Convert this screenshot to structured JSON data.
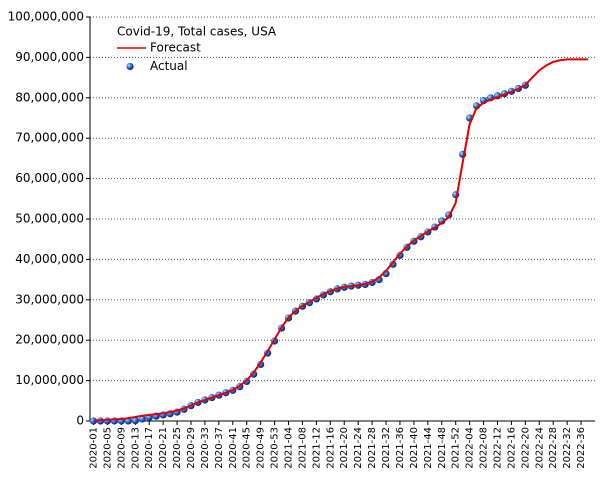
{
  "chart_data": {
    "type": "line-scatter",
    "title": "Covid-19, Total cases, USA",
    "xlim": [
      -1,
      144
    ],
    "xticks": [
      {
        "value": 0,
        "label": "2020-01"
      },
      {
        "value": 4,
        "label": "2020-05"
      },
      {
        "value": 8,
        "label": "2020-09"
      },
      {
        "value": 12,
        "label": "2020-13"
      },
      {
        "value": 16,
        "label": "2020-17"
      },
      {
        "value": 20,
        "label": "2020-21"
      },
      {
        "value": 24,
        "label": "2020-25"
      },
      {
        "value": 28,
        "label": "2020-29"
      },
      {
        "value": 32,
        "label": "2020-33"
      },
      {
        "value": 36,
        "label": "2020-37"
      },
      {
        "value": 40,
        "label": "2020-41"
      },
      {
        "value": 44,
        "label": "2020-45"
      },
      {
        "value": 48,
        "label": "2020-49"
      },
      {
        "value": 52,
        "label": "2020-53"
      },
      {
        "value": 56,
        "label": "2021-04"
      },
      {
        "value": 60,
        "label": "2021-08"
      },
      {
        "value": 64,
        "label": "2021-12"
      },
      {
        "value": 68,
        "label": "2021-16"
      },
      {
        "value": 72,
        "label": "2021-20"
      },
      {
        "value": 76,
        "label": "2021-24"
      },
      {
        "value": 80,
        "label": "2021-28"
      },
      {
        "value": 84,
        "label": "2021-32"
      },
      {
        "value": 88,
        "label": "2021-36"
      },
      {
        "value": 92,
        "label": "2021-40"
      },
      {
        "value": 96,
        "label": "2021-44"
      },
      {
        "value": 100,
        "label": "2021-48"
      },
      {
        "value": 104,
        "label": "2021-52"
      },
      {
        "value": 108,
        "label": "2022-04"
      },
      {
        "value": 112,
        "label": "2022-08"
      },
      {
        "value": 116,
        "label": "2022-12"
      },
      {
        "value": 120,
        "label": "2022-16"
      },
      {
        "value": 124,
        "label": "2022-20"
      },
      {
        "value": 128,
        "label": "2022-24"
      },
      {
        "value": 132,
        "label": "2022-28"
      },
      {
        "value": 136,
        "label": "2022-32"
      },
      {
        "value": 140,
        "label": "2022-36"
      }
    ],
    "ylim": [
      0,
      100000000
    ],
    "yticks": [
      0,
      {
        "value": 10000000,
        "label": "10,000,000"
      },
      {
        "value": 20000000,
        "label": "20,000,000"
      },
      {
        "value": 30000000,
        "label": "30,000,000"
      },
      {
        "value": 40000000,
        "label": "40,000,000"
      },
      {
        "value": 50000000,
        "label": "50,000,000"
      },
      {
        "value": 60000000,
        "label": "60,000,000"
      },
      {
        "value": 70000000,
        "label": "70,000,000"
      },
      {
        "value": 80000000,
        "label": "80,000,000"
      },
      {
        "value": 90000000,
        "label": "90,000,000"
      },
      {
        "value": 100000000,
        "label": "100,000,000"
      }
    ],
    "grid": true,
    "legend": "top-left",
    "series": [
      {
        "name": "Forecast",
        "kind": "line",
        "color": "#e00000",
        "x": [
          0,
          2,
          4,
          6,
          8,
          10,
          12,
          14,
          16,
          18,
          20,
          22,
          24,
          26,
          28,
          30,
          32,
          34,
          36,
          38,
          40,
          42,
          44,
          46,
          48,
          50,
          52,
          54,
          56,
          58,
          60,
          62,
          64,
          66,
          68,
          70,
          72,
          74,
          76,
          78,
          80,
          82,
          84,
          86,
          88,
          90,
          92,
          94,
          96,
          98,
          100,
          102,
          104,
          106,
          108,
          110,
          112,
          114,
          116,
          118,
          120,
          122,
          124,
          126,
          128,
          130,
          132,
          134,
          136,
          138,
          140,
          142
        ],
        "values": [
          100000,
          200000,
          300000,
          400000,
          500000,
          700000,
          1000000,
          1300000,
          1500000,
          1700000,
          1900000,
          2200000,
          2600000,
          3100000,
          3900000,
          4600000,
          5200000,
          5800000,
          6400000,
          7000000,
          7700000,
          8700000,
          10100000,
          12000000,
          14500000,
          17300000,
          20200000,
          23200000,
          25600000,
          27300000,
          28500000,
          29500000,
          30500000,
          31400000,
          32200000,
          32800000,
          33200000,
          33400000,
          33600000,
          33900000,
          34500000,
          35500000,
          37200000,
          39300000,
          41400000,
          43200000,
          44700000,
          45800000,
          46900000,
          47900000,
          49000000,
          50500000,
          54000000,
          64000000,
          73500000,
          77500000,
          78800000,
          79500000,
          80100000,
          80800000,
          81500000,
          82200000,
          83200000,
          85000000,
          86800000,
          88000000,
          88900000,
          89300000,
          89500000,
          89500000,
          89500000,
          89500000
        ]
      },
      {
        "name": "Actual",
        "kind": "scatter",
        "color": "#1f5fc0",
        "x": [
          0,
          2,
          4,
          6,
          8,
          10,
          12,
          14,
          16,
          18,
          20,
          22,
          24,
          26,
          28,
          30,
          32,
          34,
          36,
          38,
          40,
          42,
          44,
          46,
          48,
          50,
          52,
          54,
          56,
          58,
          60,
          62,
          64,
          66,
          68,
          70,
          72,
          74,
          76,
          78,
          80,
          82,
          84,
          86,
          88,
          90,
          92,
          94,
          96,
          98,
          100,
          102,
          104,
          106,
          108,
          110,
          112,
          114,
          116,
          118,
          120,
          122,
          124
        ],
        "values": [
          0,
          0,
          0,
          0,
          0,
          10000,
          100000,
          500000,
          900000,
          1200000,
          1500000,
          1800000,
          2200000,
          2900000,
          3800000,
          4600000,
          5200000,
          5800000,
          6400000,
          7000000,
          7600000,
          8500000,
          9800000,
          11600000,
          14000000,
          16800000,
          19800000,
          23000000,
          25500000,
          27200000,
          28400000,
          29300000,
          30200000,
          31200000,
          32000000,
          32700000,
          33100000,
          33400000,
          33600000,
          33800000,
          34300000,
          35000000,
          36500000,
          38800000,
          41000000,
          43000000,
          44500000,
          45600000,
          46800000,
          48000000,
          49500000,
          51000000,
          56000000,
          66000000,
          75000000,
          78000000,
          79300000,
          80000000,
          80500000,
          81000000,
          81600000,
          82300000,
          83100000
        ]
      }
    ]
  }
}
